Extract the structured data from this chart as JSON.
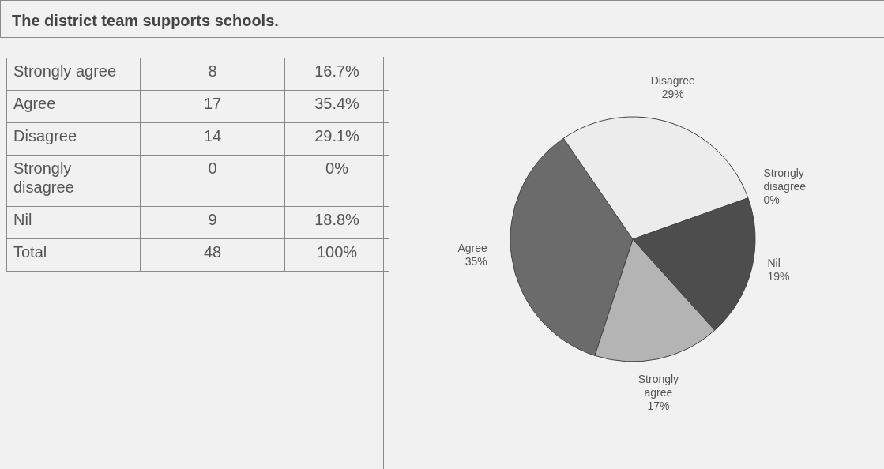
{
  "chart_data": [
    {
      "type": "other",
      "title": "The district team supports schools.",
      "categories": [
        "Strongly agree",
        "Agree",
        "Disagree",
        "Strongly disagree",
        "Nil",
        "Total"
      ],
      "series": [
        {
          "values": [
            8,
            17,
            14,
            0,
            9,
            48
          ]
        },
        {
          "values": [
            16.7,
            35.4,
            29.1,
            0,
            18.8,
            100
          ],
          "value_labels": [
            "16.7%",
            "35.4%",
            "29.1%",
            "0%",
            "18.8%",
            "100%"
          ]
        }
      ],
      "data_labels": true
    },
    {
      "type": "pie",
      "categories": [
        "Strongly agree",
        "Agree",
        "Disagree",
        "Strongly disagree",
        "Nil"
      ],
      "values": [
        16.7,
        35.4,
        29.1,
        0,
        18.8
      ],
      "value_labels": [
        "17%",
        "35%",
        "29%",
        "0%",
        "19%"
      ],
      "colors": [
        "#b4b4b4",
        "#6b6b6b",
        "#ececec",
        "#d8d8d8",
        "#4d4d4d"
      ]
    }
  ]
}
